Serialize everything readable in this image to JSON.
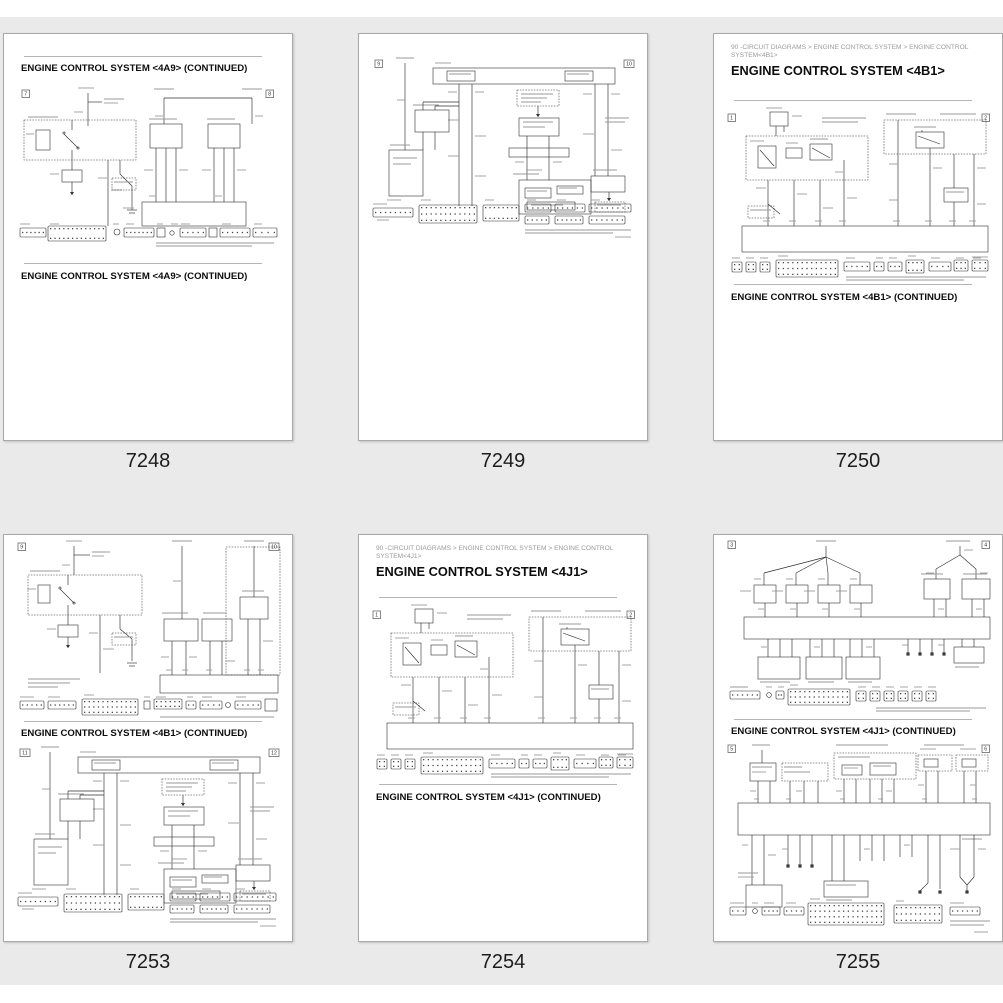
{
  "app": {
    "view": "document page thumbnail grid",
    "background_color": "#eaeaea",
    "page_background": "#ffffff",
    "page_number_color": "#1d1d1f"
  },
  "pages": [
    {
      "number": "7248",
      "heading_top": "ENGINE CONTROL SYSTEM <4A9> (CONTINUED)",
      "heading_bottom": "ENGINE CONTROL SYSTEM <4A9> (CONTINUED)",
      "diagrams": [
        {
          "markers": [
            "7",
            "8"
          ]
        }
      ]
    },
    {
      "number": "7249",
      "diagrams": [
        {
          "markers": [
            "9",
            "10"
          ]
        }
      ]
    },
    {
      "number": "7250",
      "breadcrumb": [
        "90 -CIRCUIT DIAGRAMS > ENGINE CONTROL SYSTEM > ENGINE CONTROL",
        "SYSTEM<4B1>"
      ],
      "title": "ENGINE CONTROL SYSTEM <4B1>",
      "heading_bottom": "ENGINE CONTROL SYSTEM <4B1> (CONTINUED)",
      "diagrams": [
        {
          "markers": [
            "1",
            "2"
          ]
        }
      ]
    },
    {
      "number": "7253",
      "heading_middle": "ENGINE CONTROL SYSTEM <4B1> (CONTINUED)",
      "diagrams": [
        {
          "markers": [
            "9",
            "10"
          ]
        },
        {
          "markers": [
            "11",
            "12"
          ]
        }
      ]
    },
    {
      "number": "7254",
      "breadcrumb": [
        "90 -CIRCUIT DIAGRAMS > ENGINE CONTROL SYSTEM > ENGINE CONTROL",
        "SYSTEM<4J1>"
      ],
      "title": "ENGINE CONTROL SYSTEM <4J1>",
      "heading_bottom": "ENGINE CONTROL SYSTEM <4J1> (CONTINUED)",
      "diagrams": [
        {
          "markers": [
            "1",
            "2"
          ]
        }
      ]
    },
    {
      "number": "7255",
      "heading_middle": "ENGINE CONTROL SYSTEM <4J1> (CONTINUED)",
      "diagrams": [
        {
          "markers": [
            "3",
            "4"
          ]
        },
        {
          "markers": [
            "5",
            "6"
          ]
        }
      ]
    }
  ]
}
